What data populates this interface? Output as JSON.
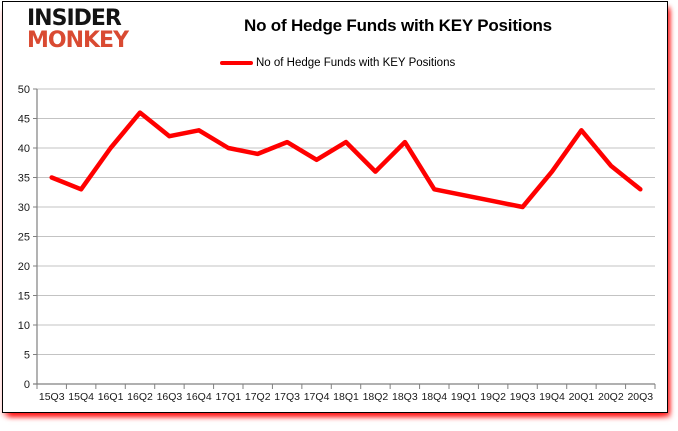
{
  "logo": {
    "line1": "INSIDER",
    "line2": "MONKEY",
    "line1_color": "#141414",
    "line2_color": "#d94a32"
  },
  "header": {
    "title": "No of Hedge Funds with KEY Positions"
  },
  "legend": {
    "label": "No of Hedge Funds with KEY Positions",
    "line_color": "#ff0000"
  },
  "chart_data": {
    "type": "line",
    "title": "No of Hedge Funds with KEY Positions",
    "categories": [
      "15Q3",
      "15Q4",
      "16Q1",
      "16Q2",
      "16Q3",
      "16Q4",
      "17Q1",
      "17Q2",
      "17Q3",
      "17Q4",
      "18Q1",
      "18Q2",
      "18Q3",
      "18Q4",
      "19Q1",
      "19Q2",
      "19Q3",
      "19Q4",
      "20Q1",
      "20Q2",
      "20Q3"
    ],
    "series": [
      {
        "name": "No of Hedge Funds with KEY Positions",
        "color": "#ff0000",
        "values": [
          35,
          33,
          40,
          46,
          42,
          43,
          40,
          39,
          41,
          38,
          41,
          36,
          41,
          33,
          32,
          31,
          30,
          36,
          43,
          37,
          33
        ]
      }
    ],
    "xlabel": "",
    "ylabel": "",
    "ylim": [
      0,
      50
    ],
    "ytick_step": 5,
    "grid": true,
    "legend_position": "top-center"
  },
  "colors": {
    "grid": "#c3c3c3",
    "axis": "#808080",
    "tick_label": "#1a1a1a",
    "frame_border": "#000000",
    "frame_glow": "#ff0000",
    "background": "#ffffff"
  }
}
